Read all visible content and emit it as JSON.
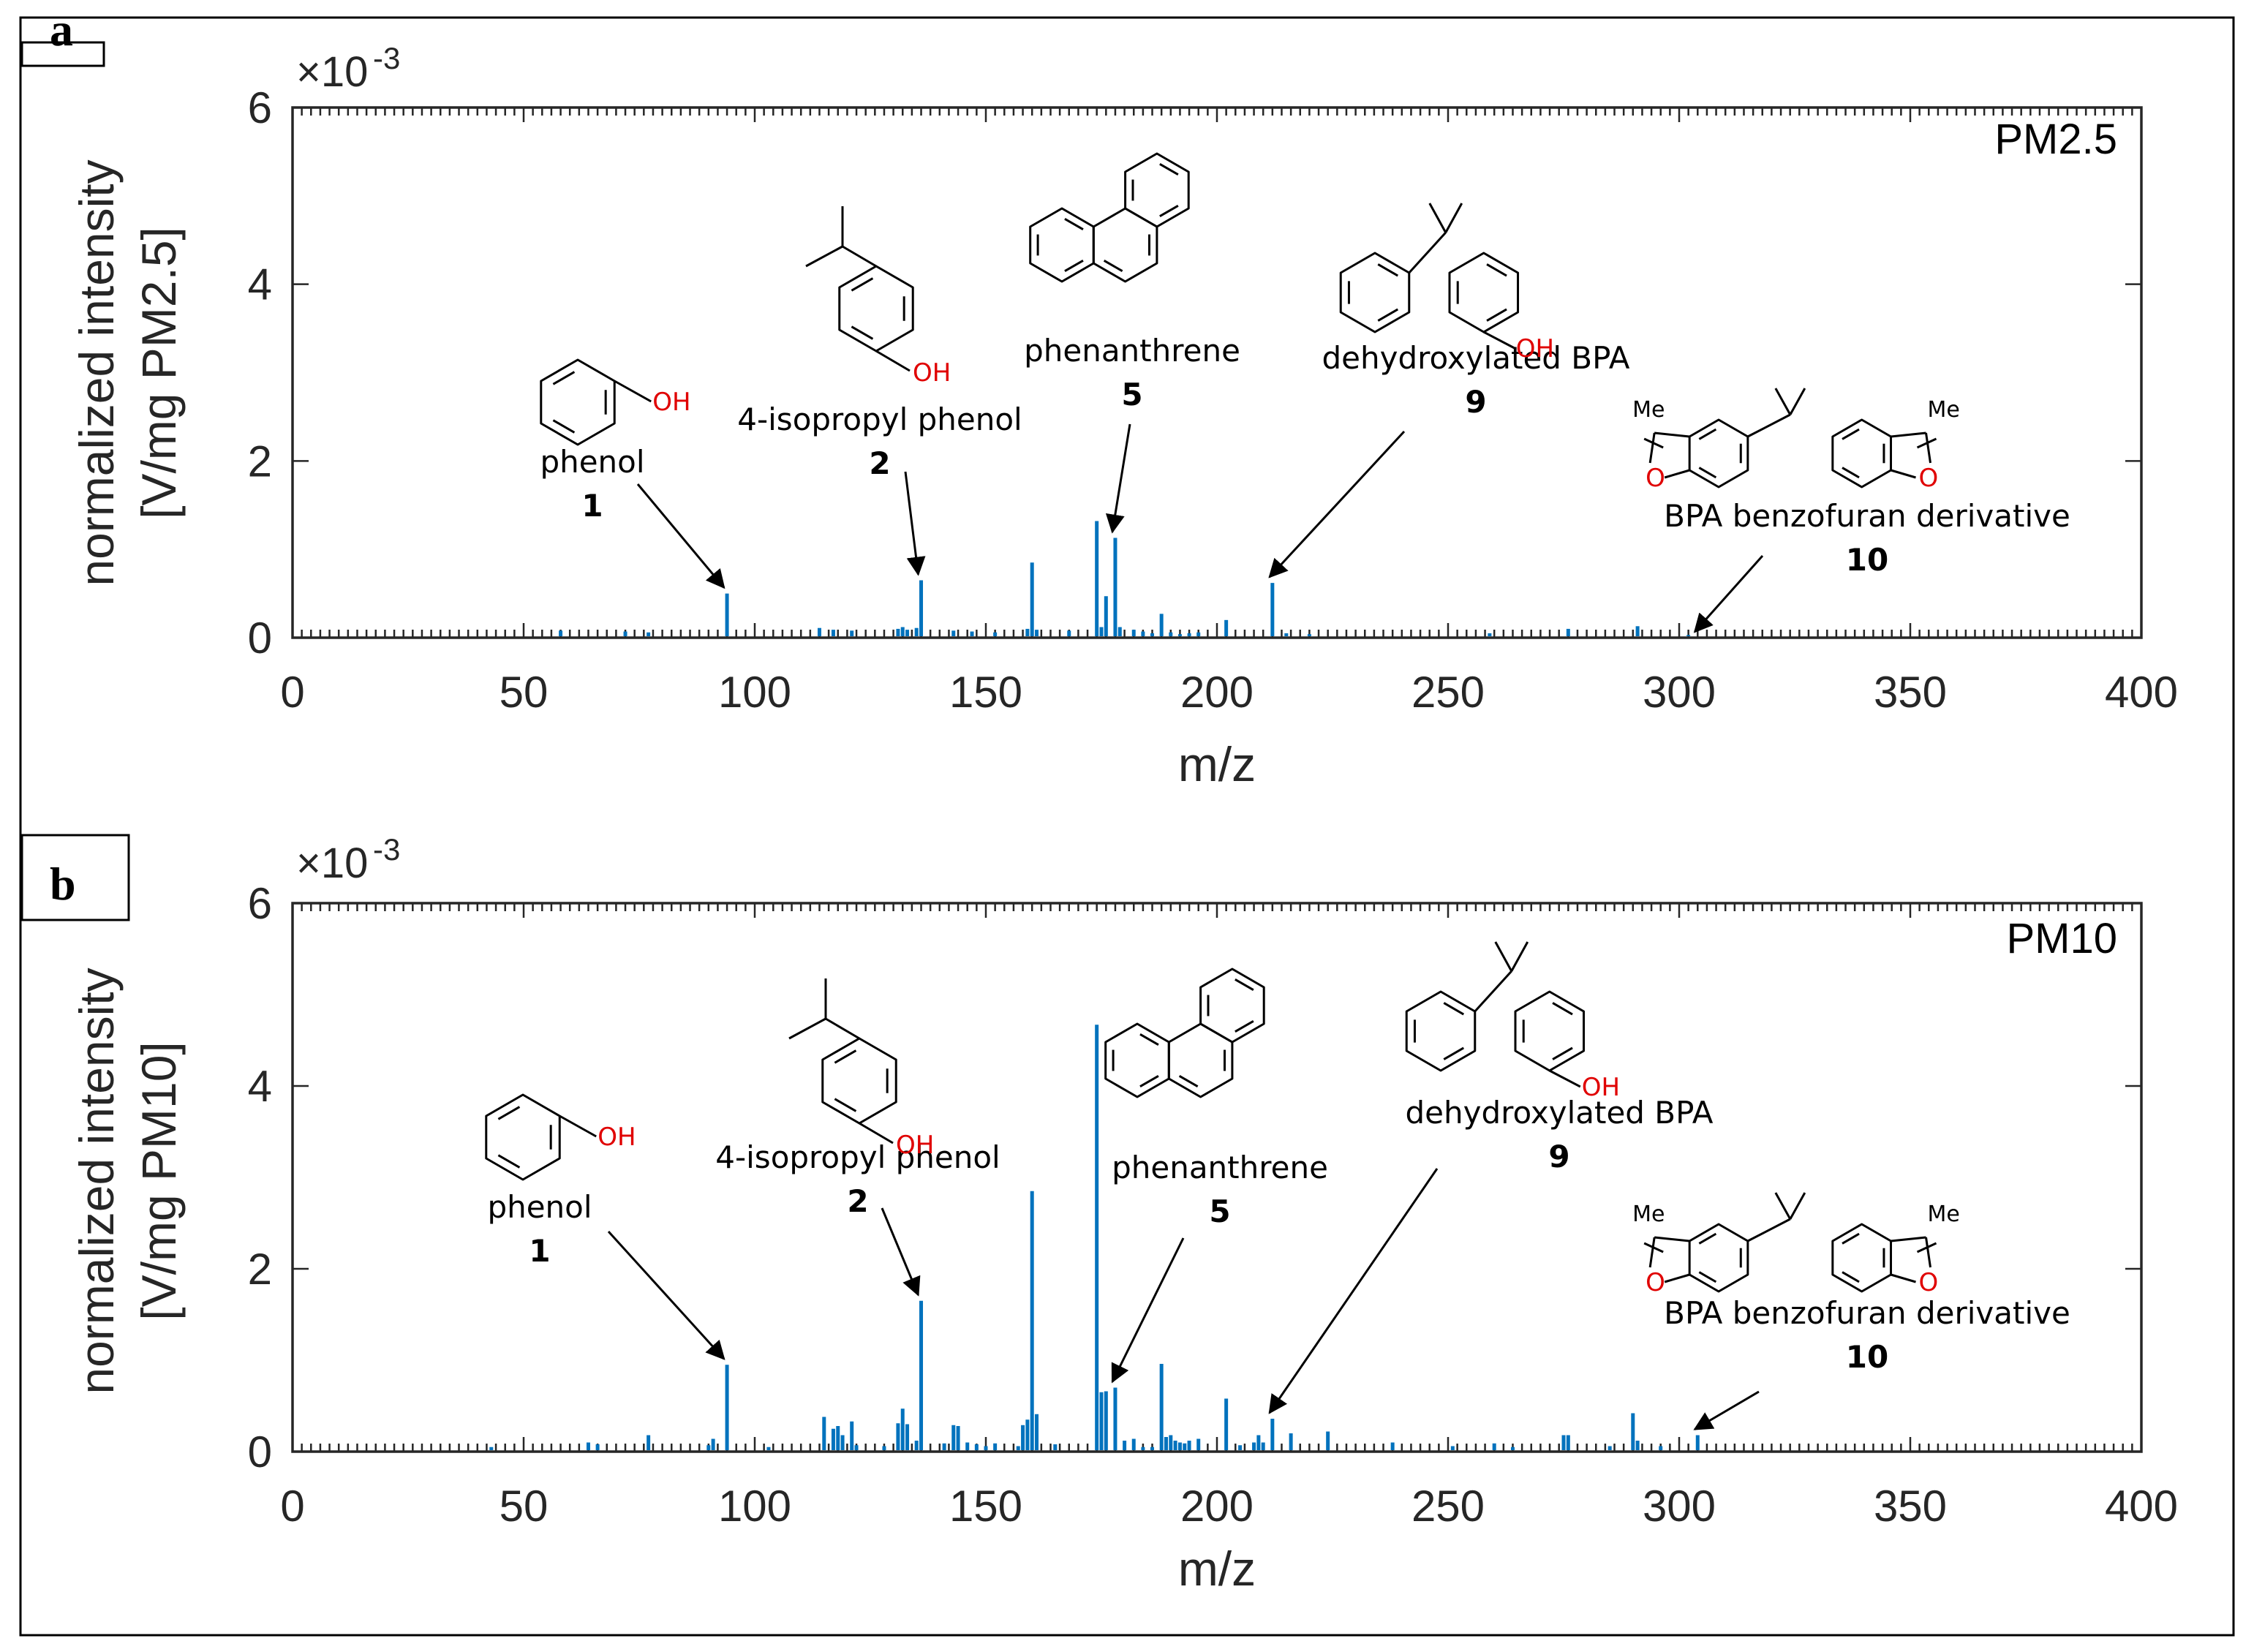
{
  "colors": {
    "bar": "#0072BD",
    "hydroxyl": "#e00000"
  },
  "chart_data": [
    {
      "type": "bar",
      "panel_letter": "a",
      "corner_label": "PM2.5",
      "xlabel": "m/z",
      "ylabel_line1": "normalized intensity",
      "ylabel_line2": "[V/mg PM2.5]",
      "xlim": [
        0,
        400
      ],
      "ylim": [
        0,
        6
      ],
      "y_multiplier_base": "×10",
      "y_multiplier_exponent": "-3",
      "x_ticks": [
        "0",
        "50",
        "100",
        "150",
        "200",
        "250",
        "300",
        "350",
        "400"
      ],
      "y_ticks": [
        "0",
        "2",
        "4",
        "6"
      ],
      "x": [
        58,
        72,
        77,
        94,
        114,
        117,
        121,
        131,
        132,
        133,
        135,
        136,
        143,
        147,
        152,
        159,
        160,
        161,
        168,
        174,
        175,
        176,
        178,
        179,
        182,
        184,
        186,
        188,
        190,
        192,
        194,
        196,
        202,
        212,
        215,
        220,
        259,
        276,
        291,
        302
      ],
      "values": [
        0.08,
        0.07,
        0.06,
        0.5,
        0.11,
        0.09,
        0.08,
        0.1,
        0.12,
        0.09,
        0.11,
        0.65,
        0.08,
        0.07,
        0.06,
        0.1,
        0.85,
        0.09,
        0.08,
        1.32,
        0.12,
        0.47,
        1.13,
        0.12,
        0.09,
        0.07,
        0.05,
        0.27,
        0.06,
        0.04,
        0.05,
        0.06,
        0.2,
        0.62,
        0.05,
        0.04,
        0.05,
        0.1,
        0.13,
        0.03
      ],
      "annotations": [
        {
          "name": "phenol",
          "number": "1",
          "mz": 94,
          "structure": "phenol"
        },
        {
          "name": "4-isopropyl phenol",
          "number": "2",
          "mz": 136,
          "structure": "isopropylphenol"
        },
        {
          "name": "phenanthrene",
          "number": "5",
          "mz": 178,
          "structure": "phenanthrene"
        },
        {
          "name": "dehydroxylated BPA",
          "number": "9",
          "mz": 212,
          "structure": "dehydroxy-bpa"
        },
        {
          "name": "BPA benzofuran derivative",
          "number": "10",
          "mz": 304,
          "structure": "bpa-benzofuran"
        }
      ]
    },
    {
      "type": "bar",
      "panel_letter": "b",
      "corner_label": "PM10",
      "xlabel": "m/z",
      "ylabel_line1": "normalized intensity",
      "ylabel_line2": "[V/mg PM10]",
      "xlim": [
        0,
        400
      ],
      "ylim": [
        0,
        6
      ],
      "y_multiplier_base": "×10",
      "y_multiplier_exponent": "-3",
      "x_ticks": [
        "0",
        "50",
        "100",
        "150",
        "200",
        "250",
        "300",
        "350",
        "400"
      ],
      "y_ticks": [
        "0",
        "2",
        "4",
        "6"
      ],
      "x": [
        43,
        64,
        66,
        77,
        90,
        91,
        94,
        103,
        115,
        117,
        118,
        119,
        121,
        122,
        128,
        131,
        132,
        133,
        135,
        136,
        141,
        143,
        144,
        146,
        148,
        150,
        152,
        157,
        158,
        159,
        160,
        161,
        165,
        174,
        175,
        176,
        178,
        180,
        182,
        184,
        186,
        188,
        189,
        190,
        191,
        192,
        193,
        194,
        196,
        202,
        205,
        208,
        209,
        210,
        212,
        216,
        224,
        238,
        251,
        260,
        264,
        275,
        276,
        285,
        290,
        291,
        296,
        304
      ],
      "values": [
        0.05,
        0.1,
        0.08,
        0.18,
        0.07,
        0.14,
        0.95,
        0.05,
        0.38,
        0.25,
        0.28,
        0.18,
        0.33,
        0.07,
        0.06,
        0.31,
        0.47,
        0.3,
        0.12,
        1.65,
        0.09,
        0.29,
        0.28,
        0.1,
        0.08,
        0.06,
        0.09,
        0.06,
        0.29,
        0.35,
        2.85,
        0.41,
        0.08,
        4.67,
        0.65,
        0.66,
        0.7,
        0.12,
        0.14,
        0.05,
        0.05,
        0.96,
        0.16,
        0.18,
        0.12,
        0.1,
        0.09,
        0.12,
        0.14,
        0.58,
        0.07,
        0.1,
        0.18,
        0.1,
        0.36,
        0.2,
        0.22,
        0.1,
        0.06,
        0.09,
        0.05,
        0.18,
        0.18,
        0.06,
        0.42,
        0.12,
        0.06,
        0.18
      ],
      "annotations": [
        {
          "name": "phenol",
          "number": "1",
          "mz": 94,
          "structure": "phenol"
        },
        {
          "name": "4-isopropyl phenol",
          "number": "2",
          "mz": 136,
          "structure": "isopropylphenol"
        },
        {
          "name": "phenanthrene",
          "number": "5",
          "mz": 178,
          "structure": "phenanthrene"
        },
        {
          "name": "dehydroxylated BPA",
          "number": "9",
          "mz": 212,
          "structure": "dehydroxy-bpa"
        },
        {
          "name": "BPA benzofuran derivative",
          "number": "10",
          "mz": 304,
          "structure": "bpa-benzofuran"
        }
      ]
    }
  ],
  "structure_labels": {
    "hydroxyl": "OH",
    "oxygen": "O",
    "methyl": "Me"
  }
}
